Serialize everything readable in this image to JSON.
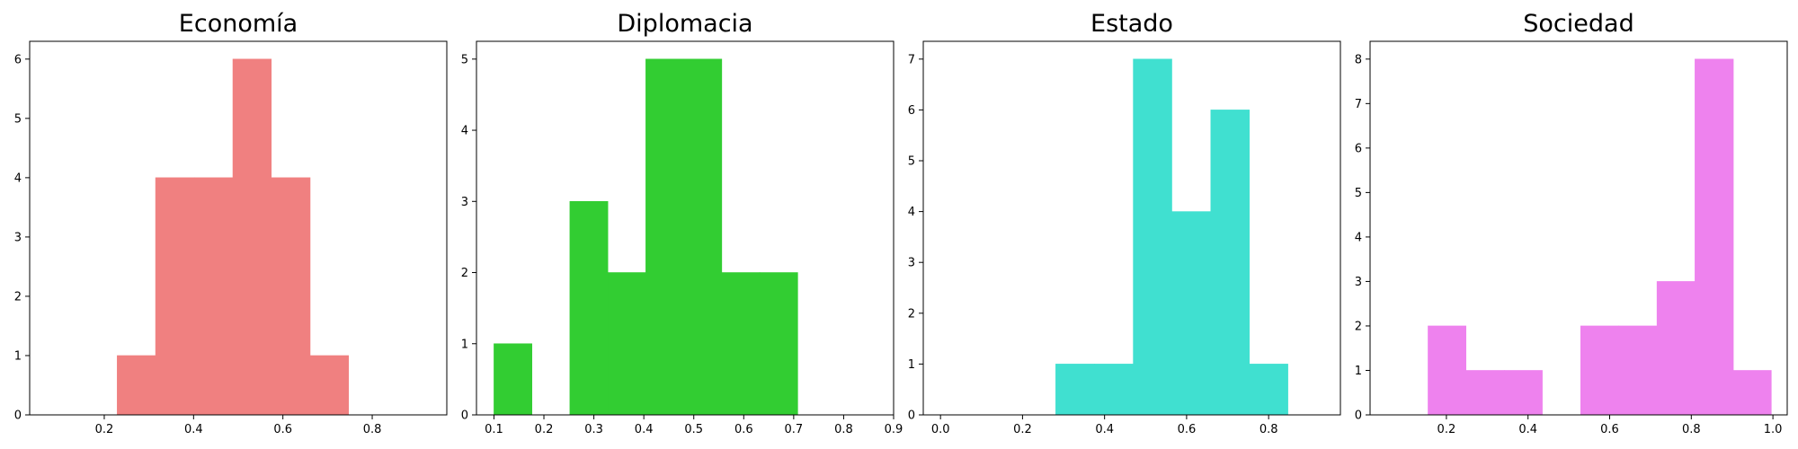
{
  "chart_data": [
    {
      "type": "bar",
      "title": "Economía",
      "color": "#f08080",
      "xlim": [
        0.033,
        0.967
      ],
      "ylim": [
        0,
        6.3
      ],
      "xticks": [
        0.2,
        0.4,
        0.6,
        0.8
      ],
      "xtick_labels": [
        "0.2",
        "0.4",
        "0.6",
        "0.8"
      ],
      "yticks": [
        0,
        1,
        2,
        3,
        4,
        5,
        6
      ],
      "bins": [
        {
          "x0": 0.229,
          "x1": 0.315,
          "count": 1
        },
        {
          "x0": 0.315,
          "x1": 0.402,
          "count": 4
        },
        {
          "x0": 0.402,
          "x1": 0.488,
          "count": 4
        },
        {
          "x0": 0.488,
          "x1": 0.574,
          "count": 6
        },
        {
          "x0": 0.574,
          "x1": 0.661,
          "count": 4
        },
        {
          "x0": 0.661,
          "x1": 0.747,
          "count": 1
        }
      ]
    },
    {
      "type": "bar",
      "title": "Diplomacia",
      "color": "#32cd32",
      "xlim": [
        0.065,
        0.9
      ],
      "ylim": [
        0,
        5.25
      ],
      "xticks": [
        0.1,
        0.2,
        0.3,
        0.4,
        0.5,
        0.6,
        0.7,
        0.8,
        0.9
      ],
      "xtick_labels": [
        "0.1",
        "0.2",
        "0.3",
        "0.4",
        "0.5",
        "0.6",
        "0.7",
        "0.8",
        "0.9"
      ],
      "yticks": [
        0,
        1,
        2,
        3,
        4,
        5
      ],
      "bins": [
        {
          "x0": 0.1,
          "x1": 0.176,
          "count": 1
        },
        {
          "x0": 0.176,
          "x1": 0.252,
          "count": 0
        },
        {
          "x0": 0.252,
          "x1": 0.328,
          "count": 3
        },
        {
          "x0": 0.328,
          "x1": 0.404,
          "count": 2
        },
        {
          "x0": 0.404,
          "x1": 0.48,
          "count": 5
        },
        {
          "x0": 0.48,
          "x1": 0.556,
          "count": 5
        },
        {
          "x0": 0.556,
          "x1": 0.632,
          "count": 2
        },
        {
          "x0": 0.632,
          "x1": 0.708,
          "count": 2
        }
      ]
    },
    {
      "type": "bar",
      "title": "Estado",
      "color": "#40e0d0",
      "xlim": [
        -0.042,
        0.975
      ],
      "ylim": [
        0,
        7.35
      ],
      "xticks": [
        0.0,
        0.2,
        0.4,
        0.6,
        0.8
      ],
      "xtick_labels": [
        "0.0",
        "0.2",
        "0.4",
        "0.6",
        "0.8"
      ],
      "yticks": [
        0,
        1,
        2,
        3,
        4,
        5,
        6,
        7
      ],
      "bins": [
        {
          "x0": 0.281,
          "x1": 0.376,
          "count": 1
        },
        {
          "x0": 0.376,
          "x1": 0.47,
          "count": 1
        },
        {
          "x0": 0.47,
          "x1": 0.564,
          "count": 7
        },
        {
          "x0": 0.564,
          "x1": 0.659,
          "count": 4
        },
        {
          "x0": 0.659,
          "x1": 0.753,
          "count": 6
        },
        {
          "x0": 0.753,
          "x1": 0.847,
          "count": 1
        }
      ]
    },
    {
      "type": "bar",
      "title": "Sociedad",
      "color": "#ee82ee",
      "xlim": [
        0.013,
        1.035
      ],
      "ylim": [
        0,
        8.4
      ],
      "xticks": [
        0.2,
        0.4,
        0.6,
        0.8,
        1.0
      ],
      "xtick_labels": [
        "0.2",
        "0.4",
        "0.6",
        "0.8",
        "1.0"
      ],
      "yticks": [
        0,
        1,
        2,
        3,
        4,
        5,
        6,
        7,
        8
      ],
      "bins": [
        {
          "x0": 0.155,
          "x1": 0.248,
          "count": 2
        },
        {
          "x0": 0.248,
          "x1": 0.342,
          "count": 1
        },
        {
          "x0": 0.342,
          "x1": 0.435,
          "count": 1
        },
        {
          "x0": 0.435,
          "x1": 0.529,
          "count": 0
        },
        {
          "x0": 0.529,
          "x1": 0.622,
          "count": 2
        },
        {
          "x0": 0.622,
          "x1": 0.716,
          "count": 2
        },
        {
          "x0": 0.716,
          "x1": 0.809,
          "count": 3
        },
        {
          "x0": 0.809,
          "x1": 0.903,
          "count": 8
        },
        {
          "x0": 0.903,
          "x1": 0.996,
          "count": 1
        }
      ]
    }
  ]
}
